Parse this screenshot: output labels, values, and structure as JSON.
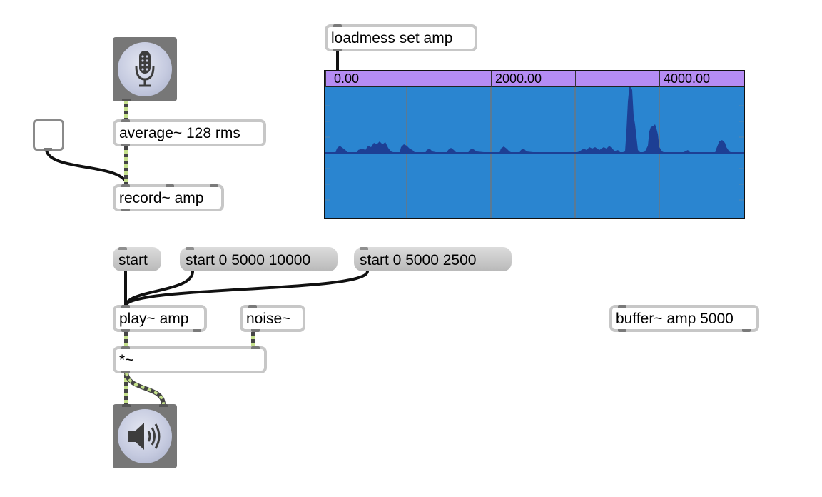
{
  "patcher": {
    "objects": {
      "average": "average~ 128 rms",
      "record": "record~ amp",
      "loadmess": "loadmess set amp",
      "play": "play~ amp",
      "noise": "noise~",
      "multiply": "*~",
      "buffer": "buffer~ amp 5000"
    },
    "messages": {
      "start": "start",
      "start_0_5000_10000": "start 0 5000 10000",
      "start_0_5000_2500": "start 0 5000 2500"
    },
    "icons": {
      "adc": "microphone-icon",
      "dac": "speaker-icon"
    },
    "waveform": {
      "ruler_labels": [
        "0.00",
        "2000.00",
        "4000.00"
      ],
      "duration_ms": 5000,
      "colors": {
        "ruler": "#b58cf4",
        "background": "#2a85d0",
        "waveform": "#1d3f94",
        "grid": "#5a7a95"
      }
    },
    "colors": {
      "signal_cord": "#c4e08a",
      "control_cord": "#111111",
      "box_border": "#c7c7c7"
    }
  }
}
